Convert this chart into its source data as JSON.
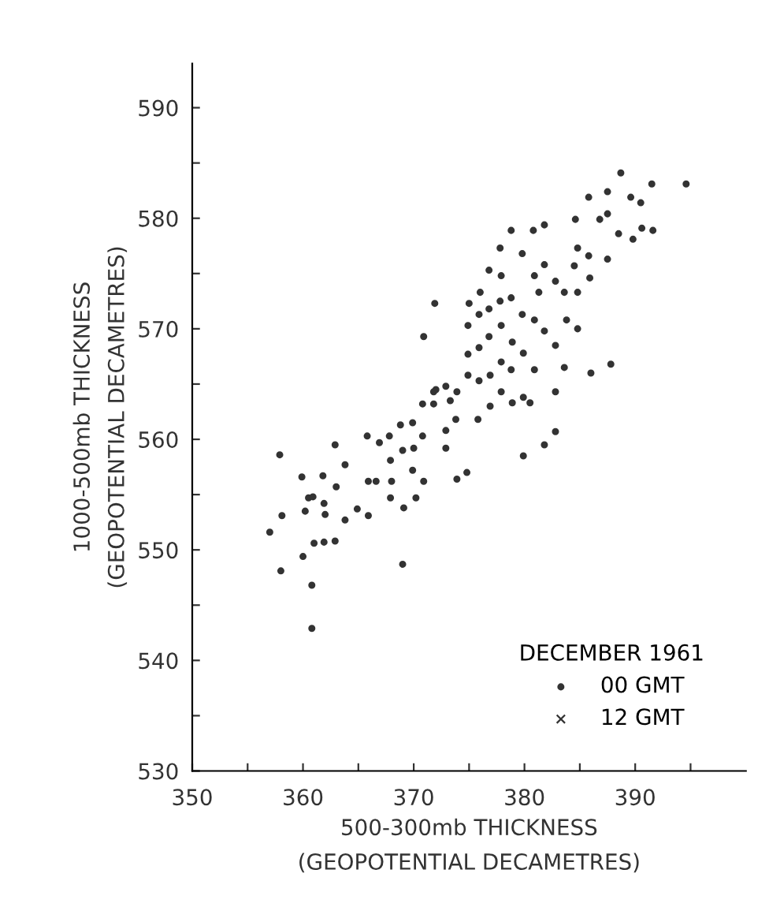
{
  "chart_data": {
    "type": "scatter",
    "xlabel": "500-300mb THICKNESS\n(GEOPOTENTIAL DECAMETRES)",
    "ylabel": "1000-500mb THICKNESS\n(GEOPOTENTIAL DECAMETRES)",
    "legend_title": "DECEMBER 1961",
    "legend": "bottom right",
    "grid": false,
    "xlim": [
      350,
      400
    ],
    "ylim": [
      530,
      594
    ],
    "xticks": [
      350,
      {
        "value": 355,
        "label": null
      },
      360,
      {
        "value": 365,
        "label": null
      },
      370,
      {
        "value": 375,
        "label": null
      },
      380,
      {
        "value": 385,
        "label": null
      },
      390,
      {
        "value": 395,
        "label": null
      }
    ],
    "yticks": [
      530,
      {
        "value": 535,
        "label": null
      },
      540,
      {
        "value": 545,
        "label": null
      },
      550,
      {
        "value": 555,
        "label": null
      },
      560,
      {
        "value": 565,
        "label": null
      },
      570,
      {
        "value": 575,
        "label": null
      },
      580,
      {
        "value": 585,
        "label": null
      },
      590
    ],
    "series": [
      {
        "name": "00 GMT",
        "color": "#333333",
        "marker": "circle",
        "x": [
          357.9,
          357.0,
          358.0,
          358.1,
          359.9,
          360.0,
          360.2,
          360.5,
          360.9,
          361.0,
          361.8,
          361.9,
          362.0,
          361.9,
          362.9,
          363.0,
          362.9,
          360.8,
          360.8,
          363.8,
          363.8,
          364.9,
          365.8,
          365.9,
          365.9,
          366.6,
          366.9,
          367.8,
          367.9,
          367.9,
          368.0,
          368.8,
          369.0,
          369.1,
          369.0,
          369.9,
          370.0,
          369.9,
          370.2,
          370.8,
          370.9,
          370.9,
          371.8,
          371.9,
          372.0,
          372.9,
          372.9,
          373.3,
          373.9,
          373.8,
          373.9,
          374.8,
          374.9,
          374.9,
          375.0,
          375.8,
          375.9,
          375.9,
          376.0,
          376.8,
          376.8,
          376.9,
          376.9,
          377.8,
          377.9,
          377.9,
          377.9,
          377.9,
          378.8,
          378.8,
          378.9,
          378.9,
          379.8,
          379.8,
          379.9,
          379.9,
          379.9,
          380.8,
          380.9,
          380.9,
          380.9,
          381.8,
          381.8,
          381.8,
          381.8,
          382.8,
          382.8,
          382.8,
          382.8,
          383.6,
          383.6,
          383.8,
          384.6,
          384.8,
          384.8,
          384.8,
          385.8,
          385.8,
          385.9,
          386.0,
          386.8,
          387.5,
          387.5,
          387.5,
          387.8,
          388.5,
          388.7,
          389.6,
          389.8,
          390.5,
          390.6,
          391.5,
          391.6,
          394.6,
          381.3,
          376.8,
          377.8,
          375.9,
          374.9,
          378.8,
          372.9,
          371.8,
          370.8,
          380.5,
          384.5
        ],
        "values": [
          558.6,
          551.6,
          548.1,
          553.1,
          556.6,
          549.4,
          553.5,
          554.7,
          554.8,
          550.6,
          556.7,
          554.2,
          553.2,
          550.7,
          559.5,
          555.7,
          550.8,
          546.8,
          542.9,
          557.7,
          552.7,
          553.7,
          560.3,
          556.2,
          553.1,
          556.2,
          559.7,
          560.3,
          558.1,
          554.7,
          556.2,
          561.3,
          559.0,
          553.8,
          548.7,
          561.5,
          559.2,
          557.2,
          554.7,
          560.3,
          556.2,
          569.3,
          563.2,
          572.3,
          564.5,
          560.8,
          559.2,
          563.5,
          564.3,
          561.8,
          556.4,
          557.0,
          565.8,
          570.3,
          572.3,
          561.8,
          568.3,
          571.3,
          573.3,
          575.3,
          569.3,
          565.8,
          563.0,
          577.3,
          574.8,
          570.3,
          567.0,
          564.3,
          578.9,
          572.8,
          568.8,
          563.3,
          576.8,
          571.3,
          567.8,
          563.8,
          558.5,
          578.9,
          574.8,
          570.8,
          566.3,
          579.4,
          575.8,
          569.8,
          559.5,
          574.3,
          568.5,
          564.3,
          560.7,
          573.3,
          566.5,
          570.8,
          579.9,
          577.3,
          573.3,
          570.0,
          581.9,
          576.6,
          574.6,
          566.0,
          579.9,
          582.4,
          580.4,
          576.3,
          566.8,
          578.6,
          584.1,
          581.9,
          578.1,
          581.4,
          579.1,
          583.1,
          578.9,
          583.1,
          573.3,
          571.8,
          572.5,
          565.3,
          567.7,
          566.3,
          564.8,
          564.3,
          563.2,
          563.3,
          575.7
        ]
      },
      {
        "name": "12 GMT",
        "color": "#333333",
        "marker": "cross"
      }
    ]
  }
}
